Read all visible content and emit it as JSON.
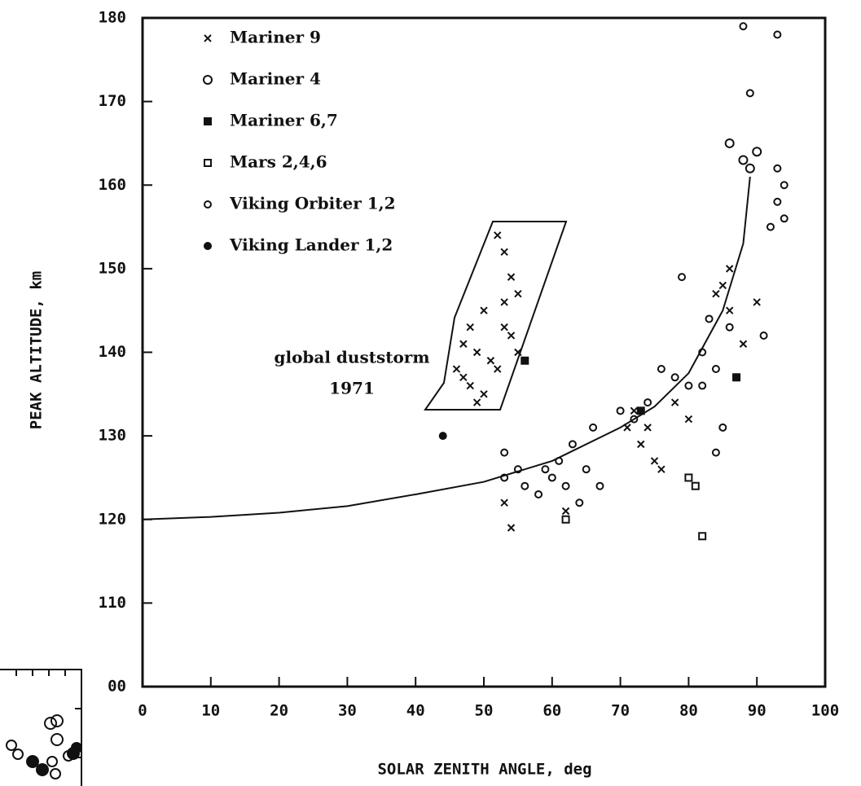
{
  "chart_data": {
    "type": "scatter",
    "xlabel": "SOLAR ZENITH ANGLE, deg",
    "ylabel": "PEAK ALTITUDE, km",
    "annotations": [
      "global duststorm",
      "1971"
    ],
    "xlim": [
      0,
      100
    ],
    "ylim": [
      100,
      180
    ],
    "xticks": [
      0,
      10,
      20,
      30,
      40,
      50,
      60,
      70,
      80,
      90,
      100
    ],
    "yticks": [
      {
        "value": 100,
        "label": "00"
      },
      110,
      120,
      130,
      140,
      150,
      160,
      170,
      180
    ],
    "series": [
      {
        "name": "Mariner 9",
        "marker": "x",
        "color": "#111",
        "x": [
          52,
          53,
          54,
          55,
          53,
          50,
          48,
          47,
          49,
          51,
          47,
          48,
          50,
          52,
          54,
          55,
          46,
          49,
          53,
          54,
          53,
          62,
          71,
          73,
          75,
          76,
          78,
          80,
          85,
          86,
          88,
          90,
          84,
          72,
          74,
          86
        ],
        "values": [
          154,
          152,
          149,
          147,
          146,
          145,
          143,
          141,
          140,
          139,
          137,
          136,
          135,
          138,
          142,
          140,
          138,
          134,
          143,
          119,
          122,
          121,
          131,
          129,
          127,
          126,
          134,
          132,
          148,
          145,
          141,
          146,
          147,
          133,
          131,
          150
        ]
      },
      {
        "name": "Mariner 4",
        "marker": "diamond",
        "color": "#111",
        "x": [
          86,
          88,
          89,
          90
        ],
        "values": [
          165,
          163,
          162,
          164
        ]
      },
      {
        "name": "Mariner 6,7",
        "marker": "filled-square",
        "color": "#111",
        "x": [
          56,
          87,
          73
        ],
        "values": [
          139,
          137,
          133
        ]
      },
      {
        "name": "Mars 2,4,6",
        "marker": "open-square",
        "color": "#111",
        "x": [
          80,
          81,
          82,
          62
        ],
        "values": [
          125,
          124,
          118,
          120
        ]
      },
      {
        "name": "Viking Orbiter 1,2",
        "marker": "open-circle",
        "color": "#111",
        "x": [
          53,
          53,
          55,
          56,
          58,
          59,
          60,
          61,
          62,
          63,
          64,
          65,
          66,
          67,
          70,
          72,
          74,
          76,
          78,
          79,
          80,
          82,
          83,
          84,
          85,
          86,
          88,
          89,
          92,
          93,
          94,
          93,
          94,
          93,
          91,
          87,
          82,
          84
        ],
        "values": [
          128,
          125,
          126,
          124,
          123,
          126,
          125,
          127,
          124,
          129,
          122,
          126,
          131,
          124,
          133,
          132,
          134,
          138,
          137,
          149,
          136,
          140,
          144,
          128,
          131,
          143,
          179,
          171,
          155,
          158,
          156,
          162,
          160,
          178,
          142,
          137,
          136,
          138
        ]
      },
      {
        "name": "Viking Lander 1,2",
        "marker": "filled-circle",
        "color": "#111",
        "x": [
          44
        ],
        "values": [
          130
        ]
      }
    ],
    "fit_line": {
      "x": [
        0,
        10,
        20,
        30,
        40,
        50,
        60,
        70,
        75,
        80,
        85,
        88,
        89
      ],
      "values": [
        120,
        120.3,
        120.8,
        121.6,
        123,
        124.5,
        127,
        131,
        133.5,
        137.5,
        145,
        153,
        161
      ]
    }
  }
}
